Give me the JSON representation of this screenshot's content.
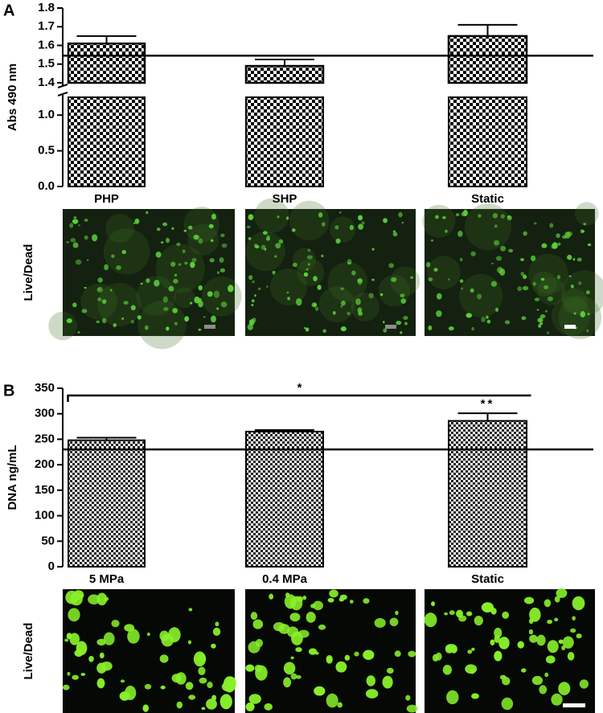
{
  "chart_data": [
    {
      "type": "bar",
      "label": "A",
      "ylabel": "Abs 490 nm",
      "categories": [
        "PHP",
        "SHP",
        "Static"
      ],
      "values": [
        1.61,
        1.49,
        1.65
      ],
      "errors": [
        0.04,
        0.035,
        0.06
      ],
      "reference_line": 1.545,
      "ylim": [
        0,
        1.8
      ],
      "axis_break": [
        1.25,
        1.4
      ],
      "yticks": [
        {
          "value": 0,
          "label": "0.0"
        },
        0.5,
        {
          "value": 1,
          "label": "1.0"
        },
        1.4,
        1.5,
        1.6,
        1.7,
        1.8
      ],
      "image_label": "Live/Dead"
    },
    {
      "type": "bar",
      "label": "B",
      "ylabel": "DNA ng/mL",
      "categories": [
        "5 MPa",
        "0.4 MPa",
        "Static"
      ],
      "values": [
        248,
        265,
        286
      ],
      "errors": [
        5,
        3,
        15
      ],
      "reference_line": 230,
      "ylim": [
        0,
        350
      ],
      "yticks": [
        0,
        50,
        100,
        150,
        200,
        250,
        300,
        350
      ],
      "annotations": [
        "*",
        "**"
      ],
      "image_label": "Live/Dead"
    }
  ]
}
